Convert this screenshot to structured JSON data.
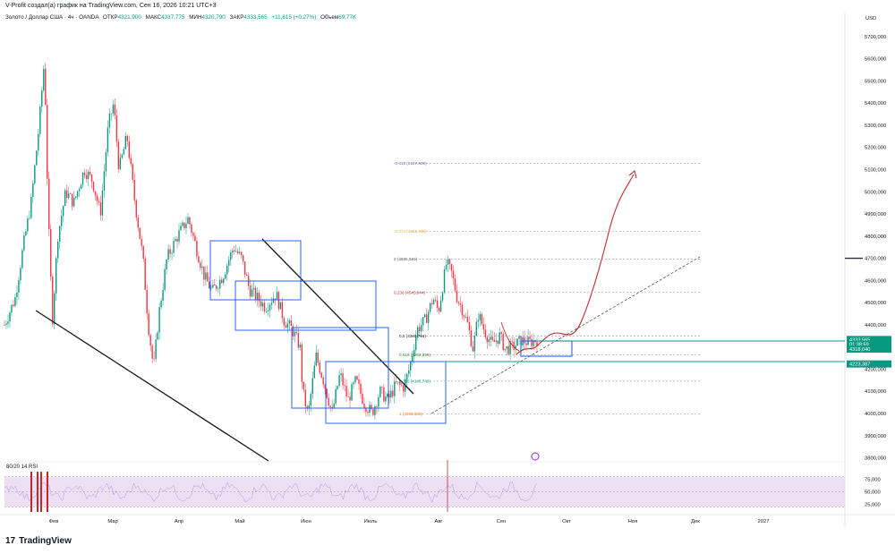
{
  "header": {
    "published": "V-Profit создал(а) график на TradingView.com, Сен 16, 2026 10:21 UTC+3",
    "symbol": "Золото / Доллар США · 4ч · OANDA",
    "open_label": "ОТКР",
    "open": "4321,900",
    "high_label": "МАКС",
    "high": "4337,775",
    "low_label": "МИН",
    "low": "4320,790",
    "close_label": "ЗАКР",
    "close": "4333,565",
    "change": "+11,615 (+0,27%)",
    "volume_label": "Объем",
    "volume": "69,77K"
  },
  "currency": "USD",
  "brand": "TradingView",
  "rsi_label": "80/20 14 RSI",
  "colors": {
    "up": "#089981",
    "down": "#f23645",
    "box": "#2962ff",
    "curve": "#b71c1c",
    "rsi_fill": "#e9d8f2",
    "rsi_line": "#7e57c2"
  },
  "chart_data": {
    "type": "candlestick",
    "ylim": [
      3790,
      5760
    ],
    "y_ticks": [
      "5700,000",
      "5600,000",
      "5500,000",
      "5400,000",
      "5300,000",
      "5200,000",
      "5100,000",
      "5000,000",
      "4900,000",
      "4800,000",
      "4700,000",
      "4600,000",
      "4500,000",
      "4400,000",
      "4300,000",
      "4200,000",
      "4100,000",
      "4000,000",
      "3900,000",
      "3800,000"
    ],
    "y_tick_values": [
      5700,
      5600,
      5500,
      5400,
      5300,
      5200,
      5100,
      5000,
      4900,
      4800,
      4700,
      4600,
      4500,
      4400,
      4300,
      4200,
      4100,
      4000,
      3900,
      3800
    ],
    "x_labels": [
      "Фев",
      "Мар",
      "Апр",
      "Май",
      "Июн",
      "Июль",
      "Авг",
      "Сен",
      "Окт",
      "Ноя",
      "Дек",
      "2027"
    ],
    "price_path": [
      [
        0,
        4400
      ],
      [
        0.02,
        4520
      ],
      [
        0.035,
        4750
      ],
      [
        0.05,
        4950
      ],
      [
        0.065,
        5300
      ],
      [
        0.075,
        5600
      ],
      [
        0.082,
        4900
      ],
      [
        0.09,
        4420
      ],
      [
        0.1,
        4800
      ],
      [
        0.115,
        5000
      ],
      [
        0.13,
        4950
      ],
      [
        0.15,
        5100
      ],
      [
        0.165,
        5050
      ],
      [
        0.18,
        4900
      ],
      [
        0.195,
        5300
      ],
      [
        0.205,
        5400
      ],
      [
        0.215,
        5100
      ],
      [
        0.23,
        5250
      ],
      [
        0.245,
        4950
      ],
      [
        0.26,
        4700
      ],
      [
        0.27,
        4400
      ],
      [
        0.28,
        4200
      ],
      [
        0.29,
        4450
      ],
      [
        0.305,
        4700
      ],
      [
        0.325,
        4800
      ],
      [
        0.345,
        4880
      ],
      [
        0.36,
        4750
      ],
      [
        0.375,
        4620
      ],
      [
        0.39,
        4550
      ],
      [
        0.41,
        4620
      ],
      [
        0.43,
        4750
      ],
      [
        0.445,
        4700
      ],
      [
        0.46,
        4560
      ],
      [
        0.475,
        4520
      ],
      [
        0.49,
        4480
      ],
      [
        0.51,
        4540
      ],
      [
        0.525,
        4420
      ],
      [
        0.54,
        4380
      ],
      [
        0.555,
        4300
      ],
      [
        0.56,
        4100
      ],
      [
        0.57,
        3990
      ],
      [
        0.585,
        4260
      ],
      [
        0.6,
        4140
      ],
      [
        0.615,
        4000
      ],
      [
        0.63,
        4180
      ],
      [
        0.645,
        4060
      ],
      [
        0.66,
        4150
      ],
      [
        0.675,
        4050
      ],
      [
        0.69,
        4000
      ],
      [
        0.705,
        4100
      ],
      [
        0.72,
        4060
      ],
      [
        0.735,
        4130
      ],
      [
        0.75,
        4120
      ],
      [
        0.76,
        4200
      ],
      [
        0.775,
        4380
      ],
      [
        0.79,
        4420
      ],
      [
        0.805,
        4520
      ],
      [
        0.815,
        4460
      ],
      [
        0.83,
        4680
      ],
      [
        0.84,
        4630
      ],
      [
        0.85,
        4520
      ],
      [
        0.86,
        4470
      ],
      [
        0.87,
        4400
      ],
      [
        0.88,
        4290
      ],
      [
        0.89,
        4450
      ],
      [
        0.9,
        4380
      ],
      [
        0.915,
        4310
      ],
      [
        0.93,
        4350
      ],
      [
        0.94,
        4290
      ],
      [
        0.955,
        4300
      ],
      [
        0.97,
        4330
      ],
      [
        0.985,
        4320
      ],
      [
        1.0,
        4333
      ]
    ],
    "fib_levels": [
      {
        "label": "-0,618 (5127,809)",
        "value": 5127.809
      },
      {
        "label": "-0,272 (4821,430)",
        "value": 4821.43
      },
      {
        "label": "0 (4695,531)",
        "value": 4695.531
      },
      {
        "label": "0,236 (4545,844)",
        "value": 4545.844
      },
      {
        "label": "0,5 (4349,794)",
        "value": 4349.794
      },
      {
        "label": "0,618 (4263,359)",
        "value": 4263.359
      },
      {
        "label": "0,786 (4145,743)",
        "value": 4145.743
      },
      {
        "label": "1 (3996,930)",
        "value": 3996.93
      }
    ],
    "price_tags": [
      {
        "label": "4700,000",
        "value": 4700,
        "color": "#131722"
      },
      {
        "label": "4333,565",
        "value": 4333.565,
        "color": "#089981"
      },
      {
        "label": "01:38:59",
        "value": 4312,
        "color": "#089981"
      },
      {
        "label": "4318,040",
        "value": 4290,
        "color": "#089981"
      },
      {
        "label": "4223,387",
        "value": 4223.387,
        "color": "#089981"
      }
    ],
    "rsi_ticks": [
      "75,000",
      "50,000",
      "25,000"
    ],
    "rsi_tick_values": [
      75,
      50,
      25
    ]
  }
}
